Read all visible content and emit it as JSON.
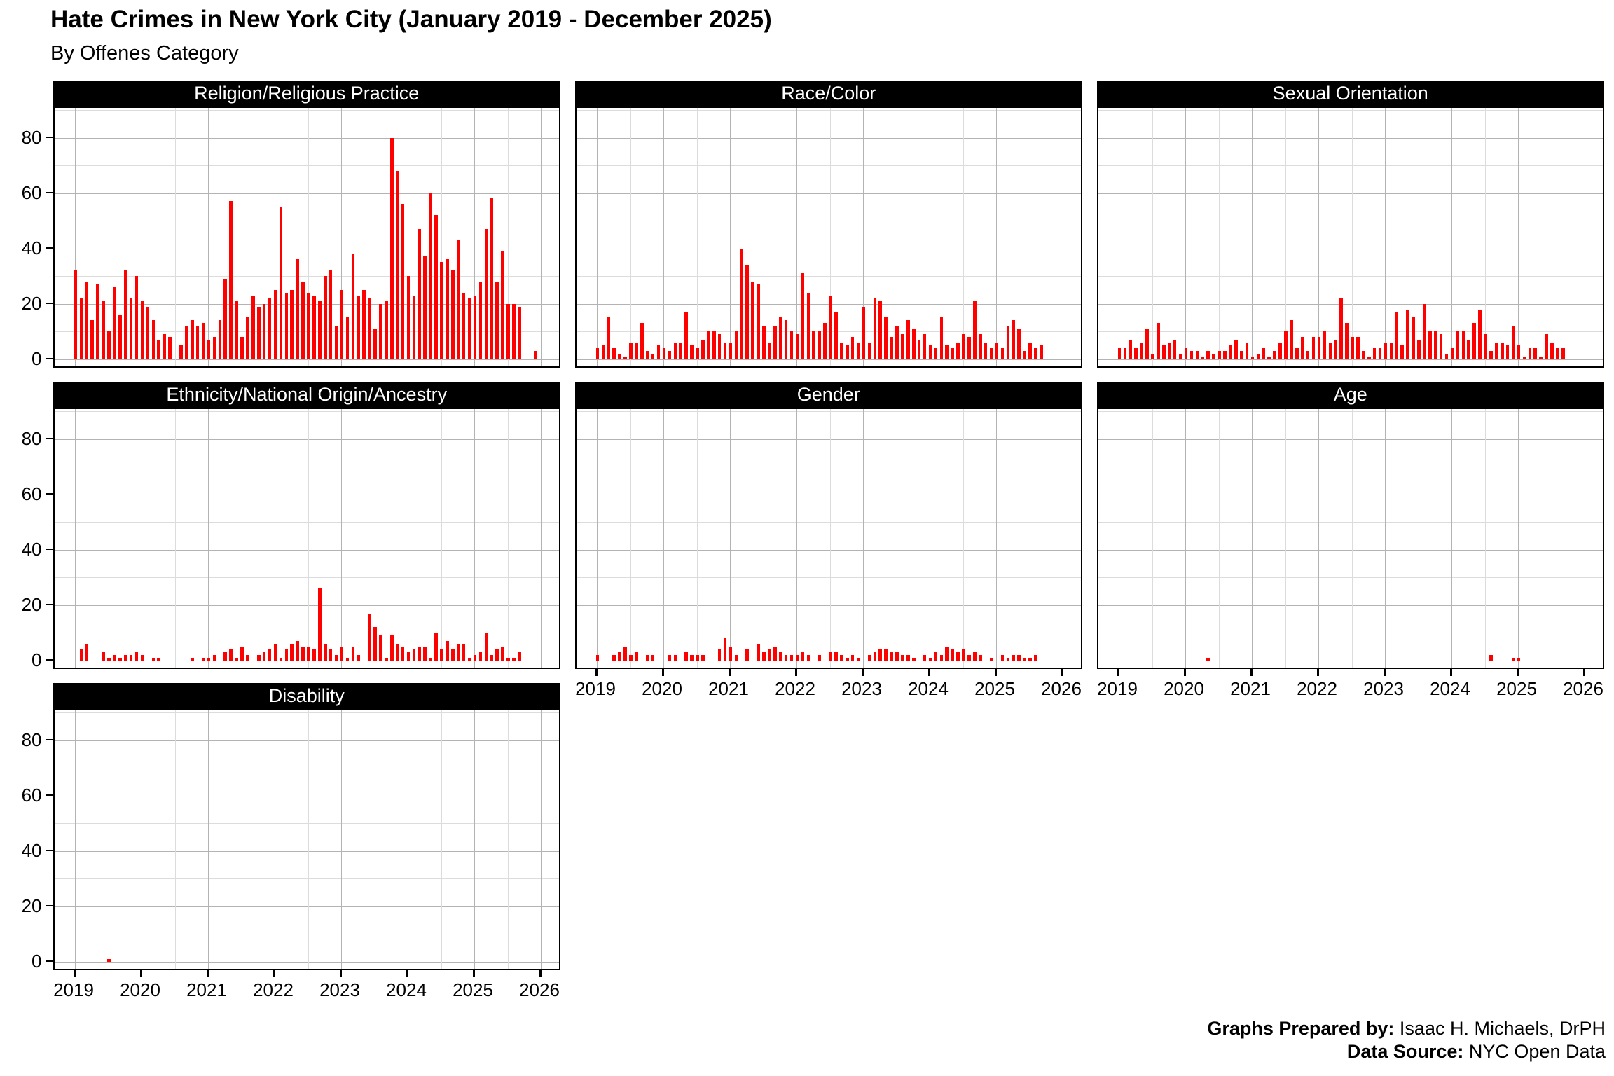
{
  "title": "Hate Crimes in New York City (January 2019 - December 2025)",
  "subtitle": "By Offenes Category",
  "footer": {
    "prepared_label": "Graphs Prepared by:",
    "prepared_value": " Isaac H. Michaels, DrPH",
    "source_label": "Data Source:",
    "source_value": " NYC Open Data"
  },
  "chart_data": {
    "type": "bar",
    "title": "Hate Crimes in New York City (January 2019 - December 2025)",
    "subtitle": "By Offenes Category",
    "x_unit": "month",
    "x_start": "2019-01",
    "x_end": "2025-12",
    "x_tick_labels": [
      "2019",
      "2020",
      "2021",
      "2022",
      "2023",
      "2024",
      "2025",
      "2026"
    ],
    "y_ticks": [
      0,
      20,
      40,
      60,
      80
    ],
    "ylim": [
      0,
      90
    ],
    "bar_color": "#ff0000",
    "legend": "none",
    "gridlines": "major and minor, light gray, white panel, black border, black strip",
    "layout_hint": "7 facets in 3x3 grid; y labels on left column only; x labels under bottom panel of each column",
    "facets": [
      {
        "label": "Religion/Religious Practice",
        "values": [
          32,
          22,
          28,
          14,
          27,
          21,
          10,
          26,
          16,
          32,
          22,
          30,
          21,
          19,
          14,
          7,
          9,
          8,
          0,
          5,
          12,
          14,
          12,
          13,
          7,
          8,
          14,
          29,
          57,
          21,
          8,
          15,
          23,
          19,
          20,
          22,
          25,
          55,
          24,
          25,
          36,
          28,
          24,
          23,
          21,
          30,
          32,
          12,
          25,
          15,
          38,
          23,
          25,
          22,
          11,
          20,
          21,
          80,
          68,
          56,
          30,
          23,
          47,
          37,
          60,
          52,
          35,
          36,
          32,
          43,
          24,
          22,
          23,
          28,
          47,
          58,
          28,
          39,
          20,
          20,
          19,
          0,
          0,
          3
        ]
      },
      {
        "label": "Race/Color",
        "values": [
          4,
          5,
          15,
          4,
          2,
          1,
          6,
          6,
          13,
          3,
          2,
          5,
          4,
          3,
          6,
          6,
          17,
          5,
          4,
          7,
          10,
          10,
          9,
          6,
          6,
          10,
          40,
          34,
          28,
          27,
          12,
          6,
          12,
          15,
          14,
          10,
          9,
          31,
          24,
          10,
          10,
          13,
          23,
          17,
          6,
          5,
          8,
          6,
          19,
          6,
          22,
          21,
          15,
          8,
          12,
          9,
          14,
          11,
          7,
          9,
          5,
          4,
          15,
          5,
          4,
          6,
          9,
          8,
          21,
          9,
          6,
          4,
          6,
          4,
          12,
          14,
          11,
          3,
          6,
          4,
          5,
          0,
          0,
          0
        ]
      },
      {
        "label": "Sexual Orientation",
        "values": [
          4,
          4,
          7,
          4,
          6,
          11,
          2,
          13,
          5,
          6,
          7,
          2,
          4,
          3,
          3,
          1,
          3,
          2,
          3,
          3,
          5,
          7,
          3,
          6,
          1,
          2,
          4,
          1,
          3,
          6,
          10,
          14,
          4,
          8,
          3,
          8,
          8,
          10,
          6,
          7,
          22,
          13,
          8,
          8,
          3,
          1,
          4,
          4,
          6,
          6,
          17,
          5,
          18,
          15,
          7,
          20,
          10,
          10,
          9,
          2,
          4,
          10,
          10,
          7,
          13,
          18,
          9,
          3,
          6,
          6,
          5,
          12,
          5,
          1,
          4,
          4,
          1,
          9,
          6,
          4,
          4,
          0,
          0,
          0
        ]
      },
      {
        "label": "Ethnicity/National Origin/Ancestry",
        "values": [
          0,
          4,
          6,
          0,
          0,
          3,
          1,
          2,
          1,
          2,
          2,
          3,
          2,
          0,
          1,
          1,
          0,
          0,
          0,
          0,
          0,
          1,
          0,
          1,
          1,
          2,
          0,
          3,
          4,
          1,
          5,
          2,
          0,
          2,
          3,
          4,
          6,
          1,
          4,
          6,
          7,
          5,
          5,
          4,
          26,
          6,
          4,
          2,
          5,
          1,
          5,
          2,
          0,
          17,
          12,
          9,
          1,
          9,
          6,
          5,
          3,
          4,
          5,
          5,
          1,
          10,
          4,
          7,
          4,
          6,
          6,
          1,
          2,
          3,
          10,
          2,
          4,
          5,
          1,
          1,
          3,
          0,
          0,
          0
        ]
      },
      {
        "label": "Gender",
        "values": [
          2,
          0,
          0,
          2,
          3,
          5,
          2,
          3,
          0,
          2,
          2,
          0,
          0,
          2,
          2,
          0,
          3,
          2,
          2,
          2,
          0,
          0,
          4,
          8,
          5,
          2,
          0,
          4,
          0,
          6,
          3,
          4,
          5,
          3,
          2,
          2,
          2,
          3,
          2,
          0,
          2,
          0,
          3,
          3,
          2,
          1,
          2,
          1,
          0,
          2,
          3,
          4,
          4,
          3,
          3,
          2,
          2,
          1,
          0,
          2,
          1,
          3,
          2,
          5,
          4,
          3,
          4,
          2,
          3,
          2,
          0,
          1,
          0,
          2,
          1,
          2,
          2,
          1,
          1,
          2,
          0,
          0,
          0,
          0
        ]
      },
      {
        "label": "Age",
        "values": [
          0,
          0,
          0,
          0,
          0,
          0,
          0,
          0,
          0,
          0,
          0,
          0,
          0,
          0,
          0,
          0,
          1,
          0,
          0,
          0,
          0,
          0,
          0,
          0,
          0,
          0,
          0,
          0,
          0,
          0,
          0,
          0,
          0,
          0,
          0,
          0,
          0,
          0,
          0,
          0,
          0,
          0,
          0,
          0,
          0,
          0,
          0,
          0,
          0,
          0,
          0,
          0,
          0,
          0,
          0,
          0,
          0,
          0,
          0,
          0,
          0,
          0,
          0,
          0,
          0,
          0,
          0,
          2,
          0,
          0,
          0,
          1,
          1,
          0,
          0,
          0,
          0,
          0,
          0,
          0,
          0,
          0,
          0,
          0
        ]
      },
      {
        "label": "Disability",
        "values": [
          0,
          0,
          0,
          0,
          0,
          0,
          1,
          0,
          0,
          0,
          0,
          0,
          0,
          0,
          0,
          0,
          0,
          0,
          0,
          0,
          0,
          0,
          0,
          0,
          0,
          0,
          0,
          0,
          0,
          0,
          0,
          0,
          0,
          0,
          0,
          0,
          0,
          0,
          0,
          0,
          0,
          0,
          0,
          0,
          0,
          0,
          0,
          0,
          0,
          0,
          0,
          0,
          0,
          0,
          0,
          0,
          0,
          0,
          0,
          0,
          0,
          0,
          0,
          0,
          0,
          0,
          0,
          0,
          0,
          0,
          0,
          0,
          0,
          0,
          0,
          0,
          0,
          0,
          0,
          0,
          0,
          0,
          0,
          0
        ]
      }
    ]
  }
}
